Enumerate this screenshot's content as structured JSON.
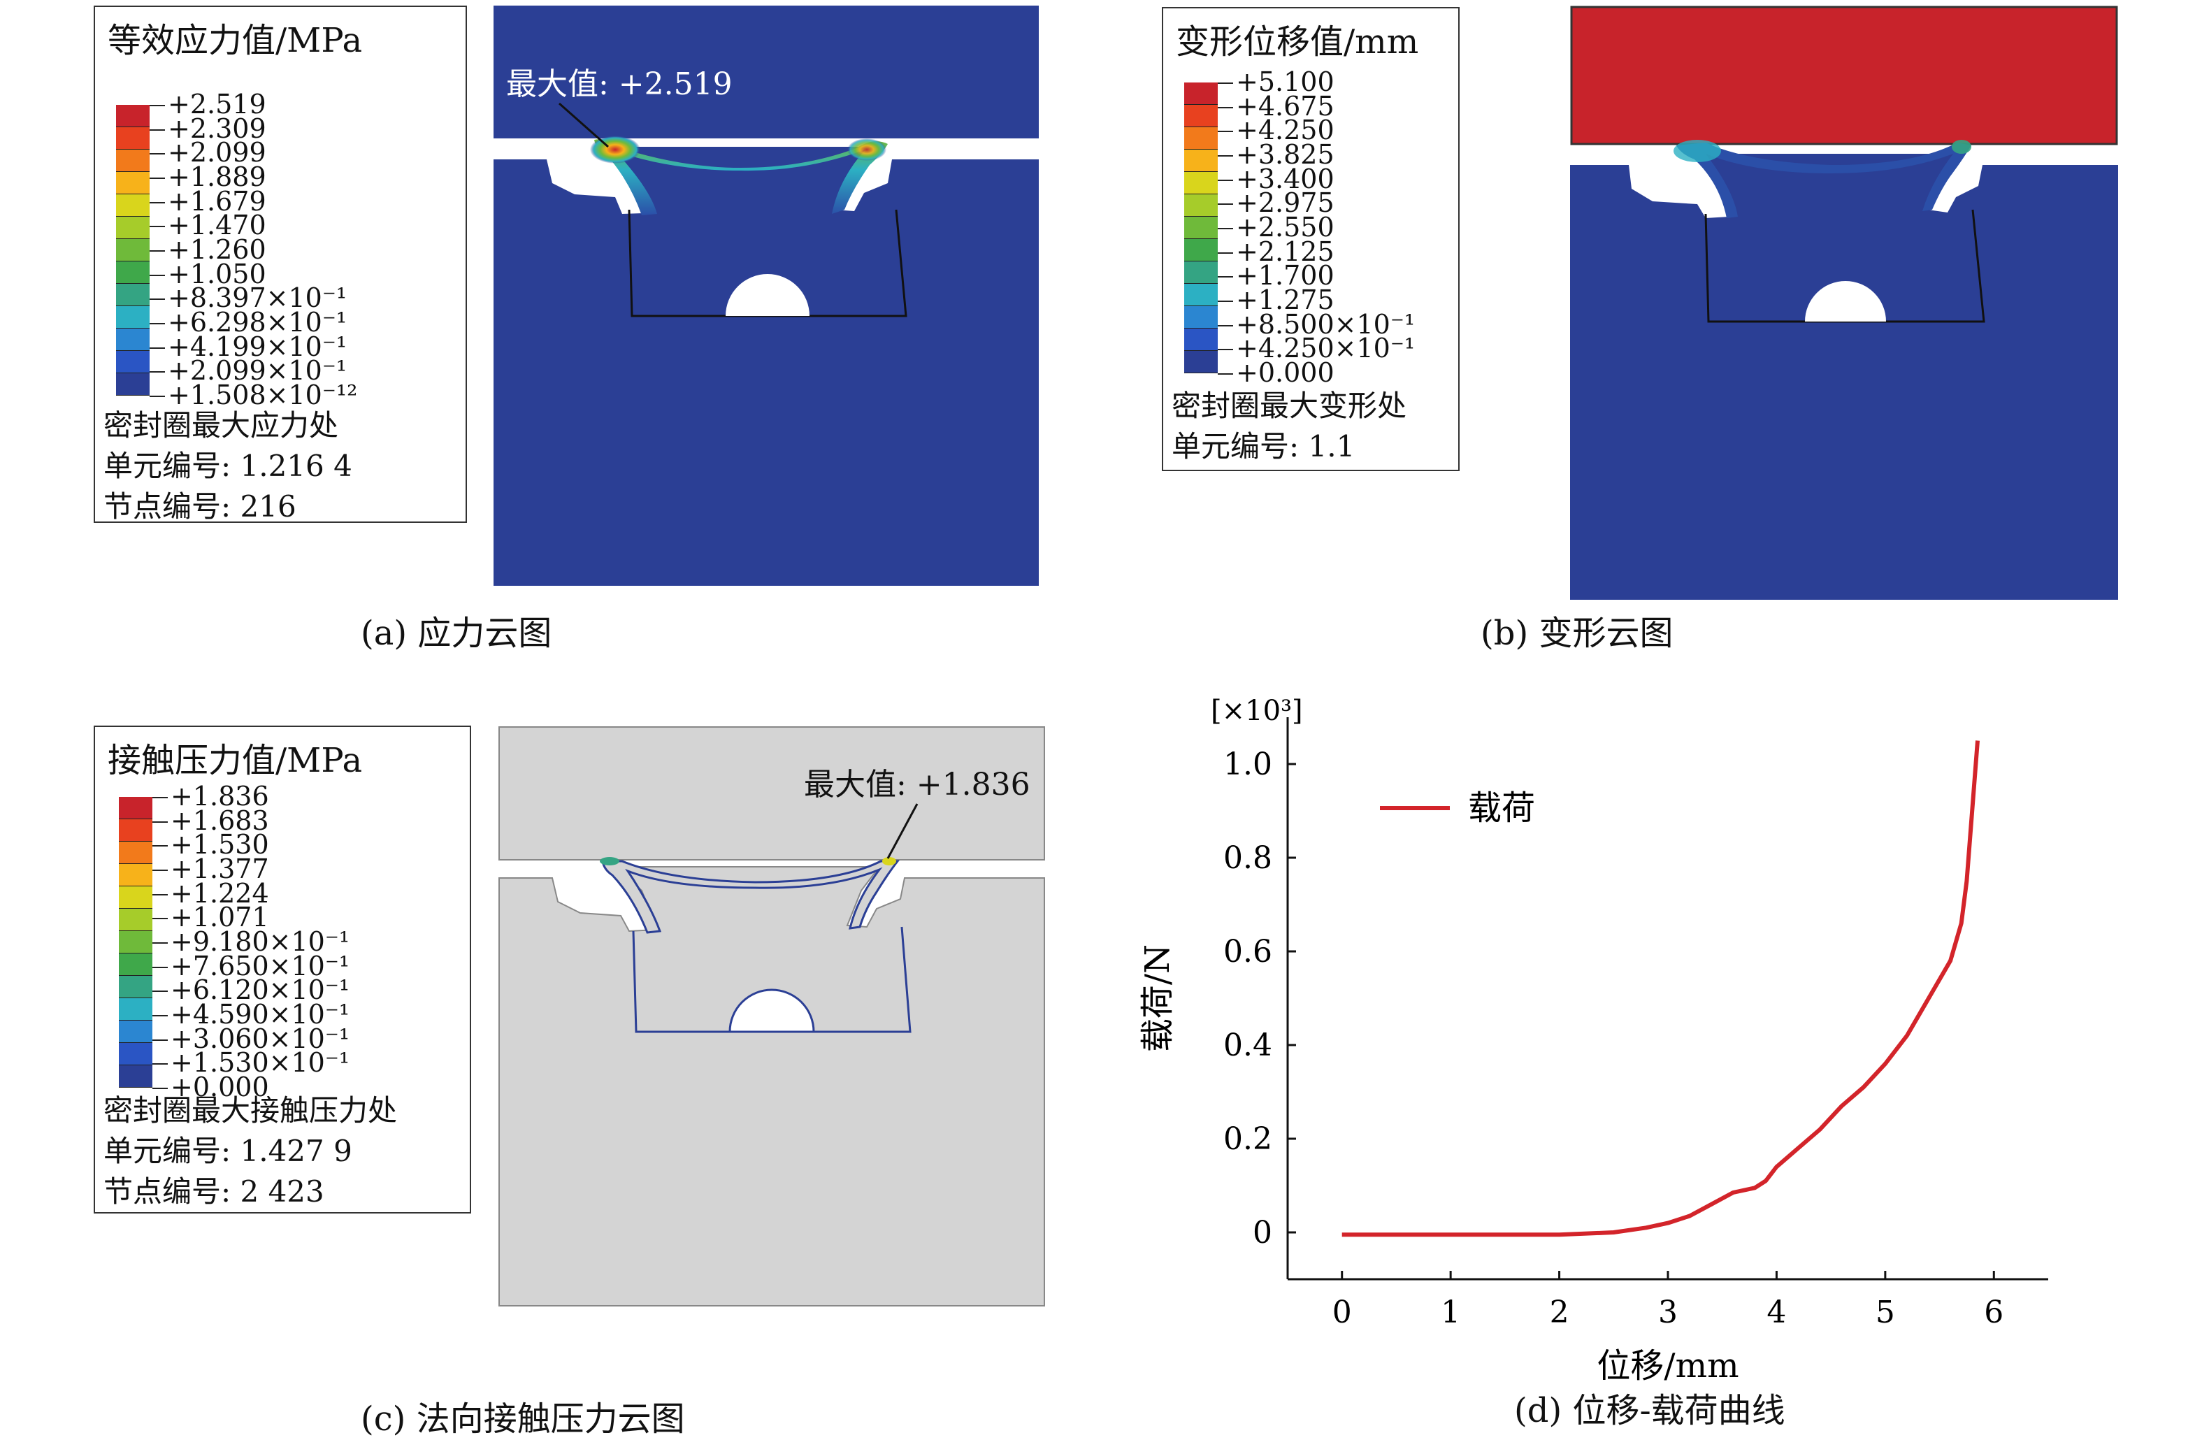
{
  "panels": {
    "a": {
      "caption": "(a) 应力云图",
      "legend_title": "等效应力值/MPa",
      "ticks": [
        "+2.519",
        "+2.309",
        "+2.099",
        "+1.889",
        "+1.679",
        "+1.470",
        "+1.260",
        "+1.050",
        "+8.397×10⁻¹",
        "+6.298×10⁻¹",
        "+4.199×10⁻¹",
        "+2.099×10⁻¹",
        "+1.508×10⁻¹²"
      ],
      "info": [
        "密封圈最大应力处",
        "单元编号: 1.216 4",
        "节点编号: 216"
      ],
      "max_label": "最大值: +2.519"
    },
    "b": {
      "caption": "(b) 变形云图",
      "legend_title": "变形位移值/mm",
      "ticks": [
        "+5.100",
        "+4.675",
        "+4.250",
        "+3.825",
        "+3.400",
        "+2.975",
        "+2.550",
        "+2.125",
        "+1.700",
        "+1.275",
        "+8.500×10⁻¹",
        "+4.250×10⁻¹",
        "+0.000"
      ],
      "info": [
        "密封圈最大变形处",
        "单元编号: 1.1"
      ]
    },
    "c": {
      "caption": "(c) 法向接触压力云图",
      "legend_title": "接触压力值/MPa",
      "ticks": [
        "+1.836",
        "+1.683",
        "+1.530",
        "+1.377",
        "+1.224",
        "+1.071",
        "+9.180×10⁻¹",
        "+7.650×10⁻¹",
        "+6.120×10⁻¹",
        "+4.590×10⁻¹",
        "+3.060×10⁻¹",
        "+1.530×10⁻¹",
        "+0.000"
      ],
      "info": [
        "密封圈最大接触压力处",
        "单元编号: 1.427 9",
        "节点编号: 2 423"
      ],
      "max_label": "最大值: +1.836"
    }
  },
  "colormap": [
    "#c8232b",
    "#e8411f",
    "#f27a1b",
    "#f7b21a",
    "#d9d51c",
    "#a6cc2a",
    "#6fba3a",
    "#3fa84a",
    "#34a483",
    "#2cb0c3",
    "#2b86d1",
    "#2a55c4",
    "#2b3f95"
  ],
  "chart_data": {
    "type": "line",
    "caption": "(d) 位移-载荷曲线",
    "title": "",
    "xlabel": "位移/mm",
    "ylabel": "载荷/N",
    "y_multiplier": "[×10³]",
    "xlim": [
      -0.5,
      6.5
    ],
    "ylim": [
      -0.1,
      1.1
    ],
    "xticks": [
      0,
      1,
      2,
      3,
      4,
      5,
      6
    ],
    "yticks": [
      0,
      0.2,
      0.4,
      0.6,
      0.8,
      1.0
    ],
    "ytick_labels": [
      "0",
      "0.2",
      "0.4",
      "0.6",
      "0.8",
      "1.0"
    ],
    "series": [
      {
        "name": "载荷",
        "color": "#d3242a",
        "x": [
          0,
          1,
          2,
          2.5,
          2.8,
          3.0,
          3.2,
          3.4,
          3.6,
          3.8,
          3.9,
          4.0,
          4.2,
          4.4,
          4.6,
          4.8,
          5.0,
          5.2,
          5.4,
          5.6,
          5.7,
          5.75,
          5.8,
          5.85
        ],
        "y": [
          -0.005,
          -0.005,
          -0.005,
          0.0,
          0.01,
          0.02,
          0.035,
          0.06,
          0.085,
          0.095,
          0.11,
          0.14,
          0.18,
          0.22,
          0.27,
          0.31,
          0.36,
          0.42,
          0.5,
          0.58,
          0.66,
          0.75,
          0.9,
          1.05
        ]
      }
    ]
  }
}
